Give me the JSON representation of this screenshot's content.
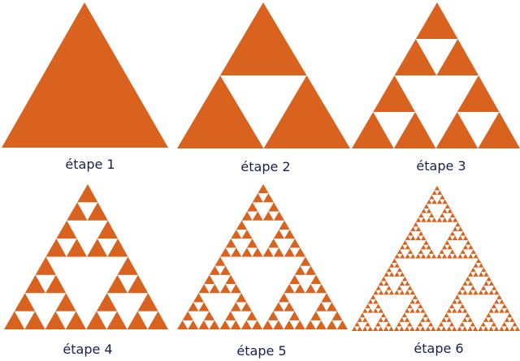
{
  "colors": {
    "fill": "#d8621e",
    "background": "#ffffff",
    "label_text": "#1a1f4b"
  },
  "steps": [
    {
      "label": "étape 1",
      "depth": 0
    },
    {
      "label": "étape 2",
      "depth": 1
    },
    {
      "label": "étape 3",
      "depth": 2
    },
    {
      "label": "étape 4",
      "depth": 3
    },
    {
      "label": "étape 5",
      "depth": 4
    },
    {
      "label": "étape 6",
      "depth": 5
    }
  ]
}
